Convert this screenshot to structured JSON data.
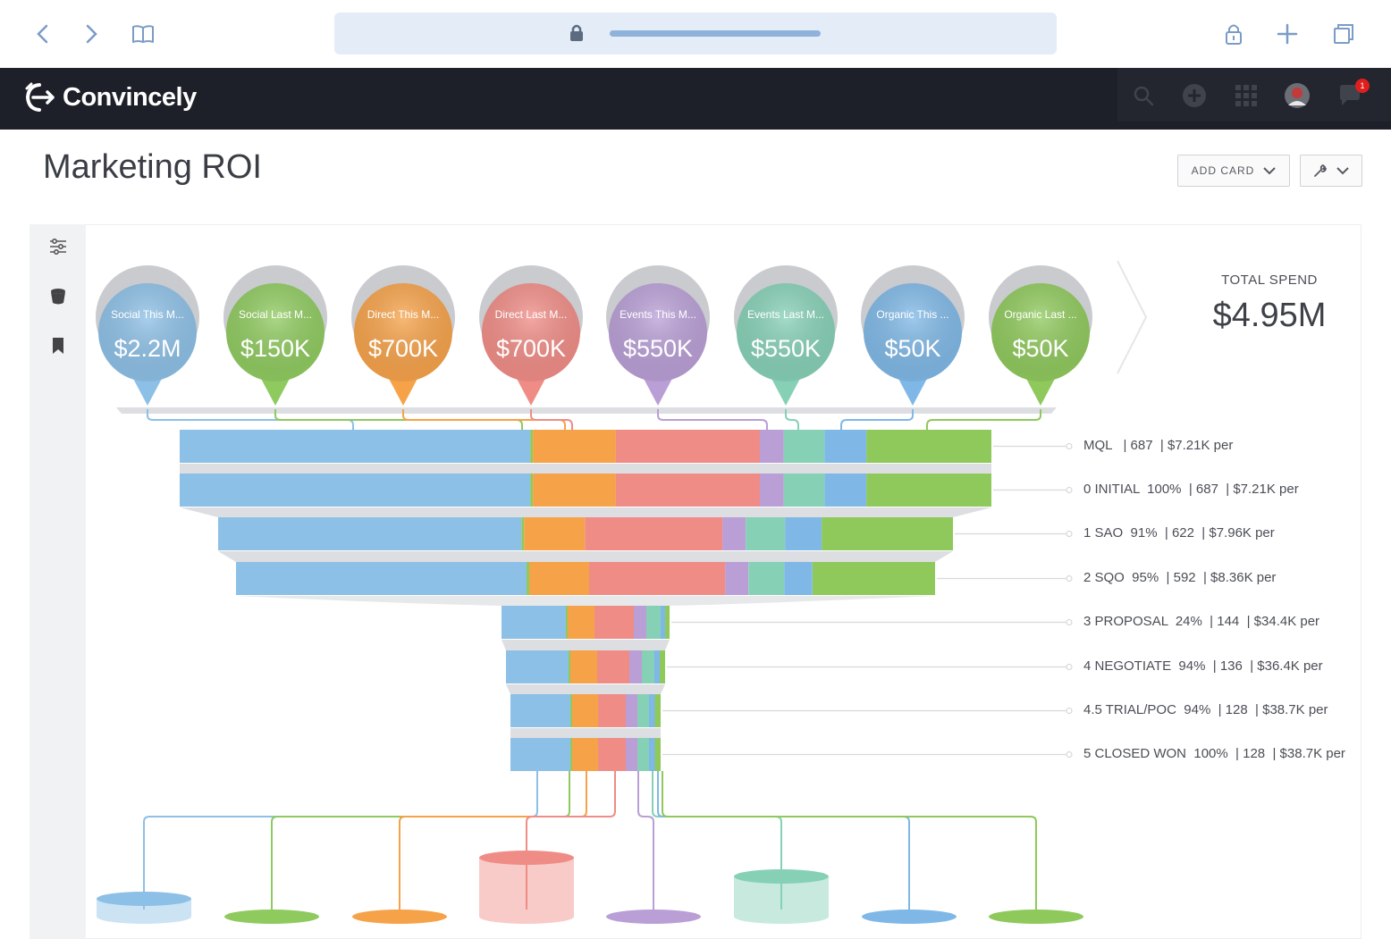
{
  "browser": {
    "icons": [
      "back-arrow-icon",
      "forward-arrow-icon",
      "book-icon",
      "lock-icon",
      "padlock-icon",
      "plus-icon",
      "tabs-icon"
    ]
  },
  "app": {
    "brand": "Convincely",
    "notification_count": "1"
  },
  "page": {
    "title": "Marketing ROI",
    "add_card_label": "ADD CARD"
  },
  "total": {
    "label": "TOTAL SPEND",
    "value": "$4.95M"
  },
  "colors": {
    "social_this": "#8dc0e6",
    "social_last": "#8fca5f",
    "direct_this": "#f6a249",
    "direct_last": "#f08c86",
    "events_this": "#b99fd6",
    "events_last": "#86d0b6",
    "organic_this": "#7fb8e6",
    "organic_last": "#8fc95c",
    "chrome_bar": "#1d2029",
    "url_bar": "#e3ecf7"
  },
  "channels": [
    {
      "label": "Social This M...",
      "value": "$2.2M",
      "color": "#8dc0e6"
    },
    {
      "label": "Social Last M...",
      "value": "$150K",
      "color": "#8fca5f"
    },
    {
      "label": "Direct This M...",
      "value": "$700K",
      "color": "#f6a249"
    },
    {
      "label": "Direct Last M...",
      "value": "$700K",
      "color": "#f08c86"
    },
    {
      "label": "Events This M...",
      "value": "$550K",
      "color": "#b99fd6"
    },
    {
      "label": "Events Last M...",
      "value": "$550K",
      "color": "#86d0b6"
    },
    {
      "label": "Organic This ...",
      "value": "$50K",
      "color": "#7fb8e6"
    },
    {
      "label": "Organic Last ...",
      "value": "$50K",
      "color": "#8fc95c"
    }
  ],
  "stages": [
    {
      "label": "MQL   | 687  | $7.21K per"
    },
    {
      "label": "0 INITIAL  100%  | 687  | $7.21K per"
    },
    {
      "label": "1 SAO  91%  | 622  | $7.96K per"
    },
    {
      "label": "2 SQO  95%  | 592  | $8.36K per"
    },
    {
      "label": "3 PROPOSAL  24%  | 144  | $34.4K per"
    },
    {
      "label": "4 NEGOTIATE  94%  | 136  | $36.4K per"
    },
    {
      "label": "4.5 TRIAL/POC  94%  | 128  | $38.7K per"
    },
    {
      "label": "5 CLOSED WON  100%  | 128  | $38.7K per"
    }
  ]
}
